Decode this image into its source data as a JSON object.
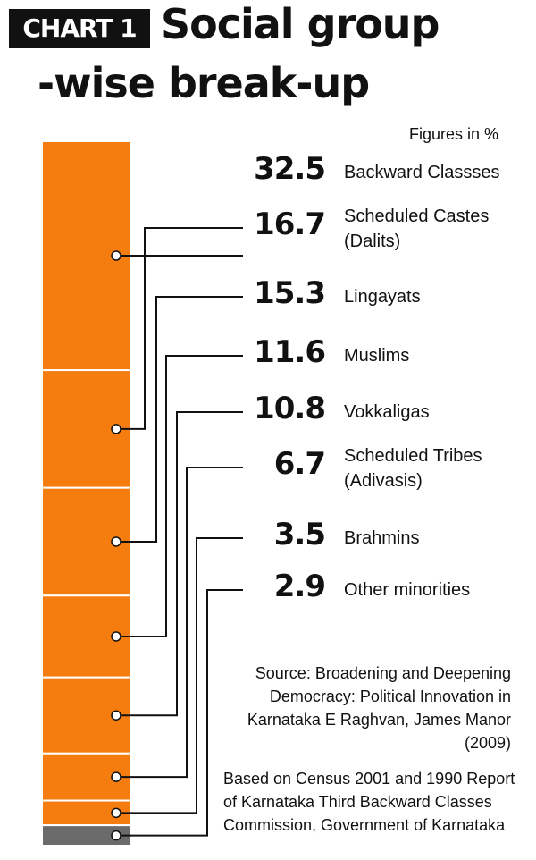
{
  "header": {
    "tag": "CHART 1",
    "title_line1": "Social group",
    "title_line2": "-wise break-up",
    "units": "Figures in %"
  },
  "chart_data": {
    "type": "bar",
    "stacked": true,
    "title": "Social group-wise break-up",
    "units": "Figures in %",
    "categories": [
      "Backward Classses",
      "Scheduled Castes (Dalits)",
      "Lingayats",
      "Muslims",
      "Vokkaligas",
      "Scheduled Tribes (Adivasis)",
      "Brahmins",
      "Other minorities"
    ],
    "values": [
      32.5,
      16.7,
      15.3,
      11.6,
      10.8,
      6.7,
      3.5,
      2.9
    ],
    "value_labels": [
      "32.5",
      "16.7",
      "15.3",
      "11.6",
      "10.8",
      "6.7",
      "3.5",
      "2.9"
    ],
    "labels": [
      "Backward Classses",
      "Scheduled Castes\n(Dalits)",
      "Lingayats",
      "Muslims",
      "Vokkaligas",
      "Scheduled Tribes\n(Adivasis)",
      "Brahmins",
      "Other minorities"
    ],
    "colors": [
      "#f57c0e",
      "#f57c0e",
      "#f57c0e",
      "#f57c0e",
      "#f57c0e",
      "#f57c0e",
      "#f57c0e",
      "#6b6b6b"
    ]
  },
  "source": "Source: Broadening and Deepening Democracy: Political Innovation in Karnataka E Raghvan, James Manor (2009)",
  "note": "Based on Census 2001 and 1990 Report of Karnataka Third Backward Classes Commission, Government of Karnataka"
}
